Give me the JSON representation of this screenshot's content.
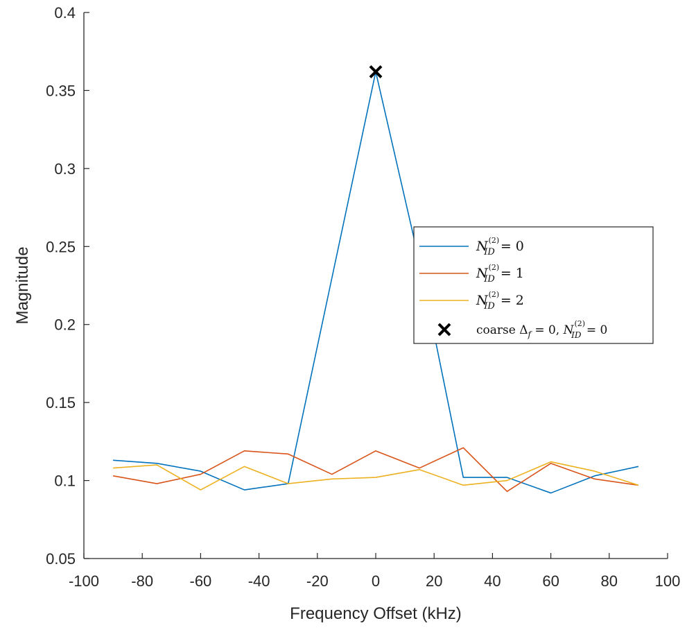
{
  "chart_data": {
    "type": "line",
    "title": "",
    "xlabel": "Frequency Offset (kHz)",
    "ylabel": "Magnitude",
    "xlim": [
      -100,
      100
    ],
    "ylim": [
      0.05,
      0.4
    ],
    "xticks": [
      -100,
      -80,
      -60,
      -40,
      -20,
      0,
      20,
      40,
      60,
      80,
      100
    ],
    "yticks": [
      0.05,
      0.1,
      0.15,
      0.2,
      0.25,
      0.3,
      0.35,
      0.4
    ],
    "x": [
      -90,
      -75,
      -60,
      -45,
      -30,
      -15,
      0,
      15,
      30,
      45,
      60,
      75,
      90
    ],
    "series": [
      {
        "name": "N_ID^(2) = 0",
        "color": "#0072BD",
        "values": [
          0.113,
          0.111,
          0.106,
          0.094,
          0.098,
          0.23,
          0.362,
          0.24,
          0.102,
          0.102,
          0.092,
          0.103,
          0.109
        ]
      },
      {
        "name": "N_ID^(2) = 1",
        "color": "#D95319",
        "values": [
          0.103,
          0.098,
          0.104,
          0.119,
          0.117,
          0.104,
          0.119,
          0.108,
          0.121,
          0.093,
          0.111,
          0.101,
          0.097
        ]
      },
      {
        "name": "N_ID^(2) = 2",
        "color": "#EDB120",
        "values": [
          0.108,
          0.11,
          0.094,
          0.109,
          0.098,
          0.101,
          0.102,
          0.107,
          0.097,
          0.1,
          0.112,
          0.106,
          0.097
        ]
      }
    ],
    "marker": {
      "name": "coarse Δf = 0, N_ID^(2) = 0",
      "x": 0,
      "y": 0.362,
      "symbol": "x",
      "color": "#000000"
    },
    "legend": {
      "position": "right",
      "entries": [
        {
          "prefix": "N",
          "sub": "ID",
          "sup": "(2)",
          "suffix": " = 0"
        },
        {
          "prefix": "N",
          "sub": "ID",
          "sup": "(2)",
          "suffix": " = 1"
        },
        {
          "prefix": "N",
          "sub": "ID",
          "sup": "(2)",
          "suffix": " = 2"
        },
        {
          "lead": "coarse Δ",
          "lead_sub": "f",
          "mid": " = 0, ",
          "prefix": "N",
          "sub": "ID",
          "sup": "(2)",
          "suffix": " = 0"
        }
      ]
    },
    "grid": false
  }
}
